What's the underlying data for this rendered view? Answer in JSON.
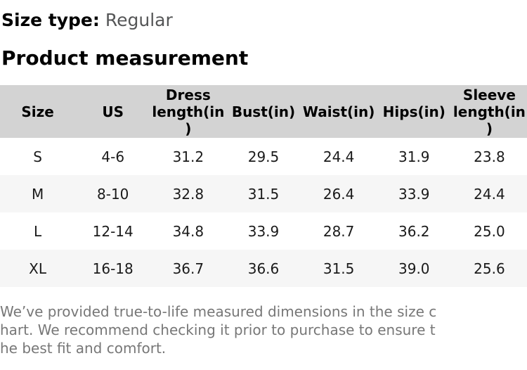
{
  "page": {
    "size_type": {
      "label": "Size type:",
      "value": "Regular"
    },
    "section_title": "Product measurement"
  },
  "table": {
    "columns": [
      {
        "label": "Size",
        "display": "Size"
      },
      {
        "label": "US",
        "display": "US"
      },
      {
        "label": "Dress length(in)",
        "display": "Dress\nlength(in\n)"
      },
      {
        "label": "Bust(in)",
        "display": "Bust(in)"
      },
      {
        "label": "Waist(in)",
        "display": "Waist(in)"
      },
      {
        "label": "Hips(in)",
        "display": "Hips(in)"
      },
      {
        "label": "Sleeve length(in)",
        "display": "Sleeve\nlength(in\n)"
      }
    ],
    "rows": [
      {
        "cells": [
          "S",
          "4-6",
          "31.2",
          "29.5",
          "24.4",
          "31.9",
          "23.8"
        ]
      },
      {
        "cells": [
          "M",
          "8-10",
          "32.8",
          "31.5",
          "26.4",
          "33.9",
          "24.4"
        ]
      },
      {
        "cells": [
          "L",
          "12-14",
          "34.8",
          "33.9",
          "28.7",
          "36.2",
          "25.0"
        ]
      },
      {
        "cells": [
          "XL",
          "16-18",
          "36.7",
          "36.6",
          "31.5",
          "39.0",
          "25.6"
        ]
      }
    ]
  },
  "footer": {
    "text": "We’ve provided true-to-life measured dimensions in the size chart. We recommend checking it prior to purchase to ensure the best fit and comfort.",
    "lines": [
      "We’ve provided true-to-life measured dimensions in the size c",
      "hart. We recommend checking it prior to purchase to ensure t",
      "he best fit and comfort."
    ]
  },
  "colors": {
    "header_bg": "#d3d3d3",
    "stripe_bg": "#f6f6f6",
    "heading_text": "#000000",
    "size_type_value_text": "#555657",
    "body_text": "#1a1a1a",
    "footer_text": "#777777"
  }
}
